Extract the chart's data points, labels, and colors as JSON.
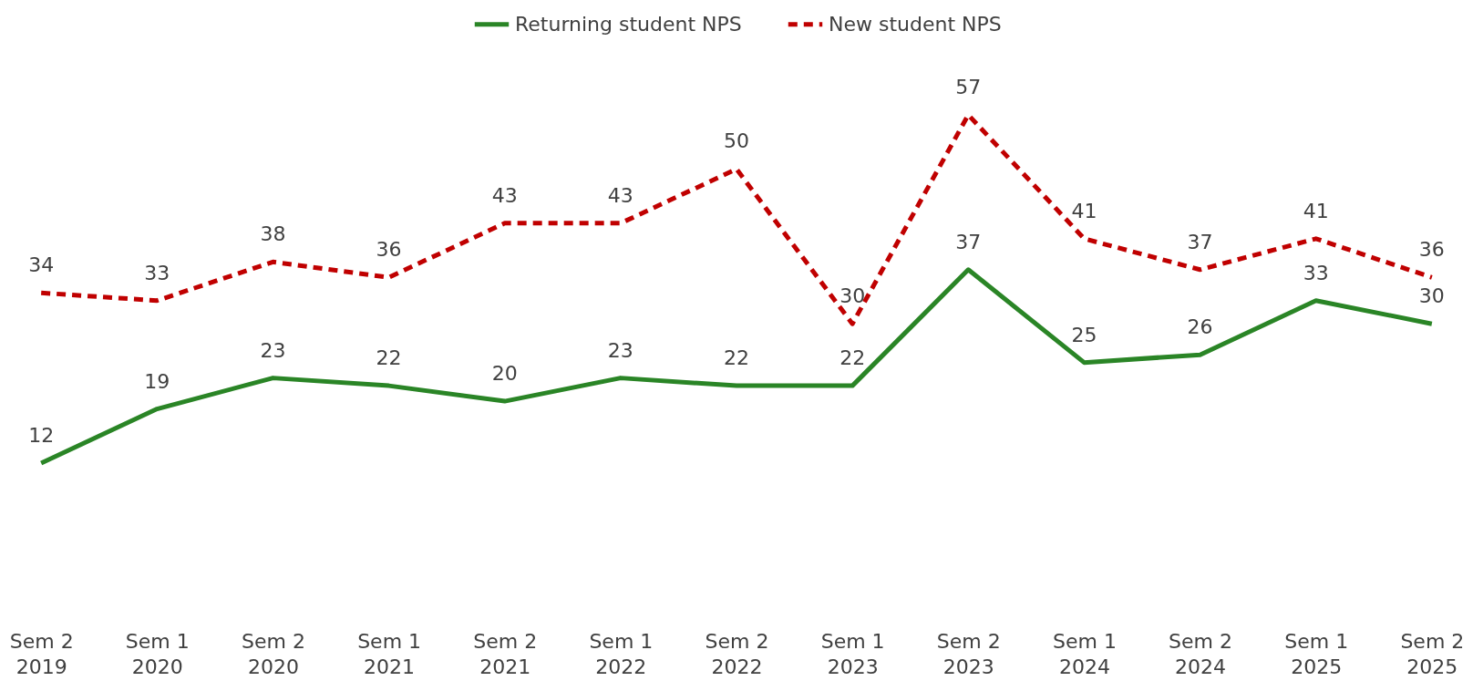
{
  "chart_data": {
    "type": "line",
    "categories": [
      "Sem 2 2019",
      "Sem 1 2020",
      "Sem 2 2020",
      "Sem 1 2021",
      "Sem 2 2021",
      "Sem 1 2022",
      "Sem 2 2022",
      "Sem 1 2023",
      "Sem 2 2023",
      "Sem 1 2024",
      "Sem 2 2024",
      "Sem 1 2025",
      "Sem 2 2025"
    ],
    "series": [
      {
        "name": "Returning student NPS",
        "color": "#2a8526",
        "line_style": "solid",
        "values": [
          12,
          19,
          23,
          22,
          20,
          23,
          22,
          22,
          37,
          25,
          26,
          33,
          30
        ]
      },
      {
        "name": "New student NPS",
        "color": "#c00000",
        "line_style": "dashed",
        "values": [
          34,
          33,
          38,
          36,
          43,
          43,
          50,
          30,
          57,
          41,
          37,
          41,
          36
        ]
      }
    ],
    "data_labels": true,
    "legend": "top",
    "grid": false,
    "marker": "none"
  }
}
